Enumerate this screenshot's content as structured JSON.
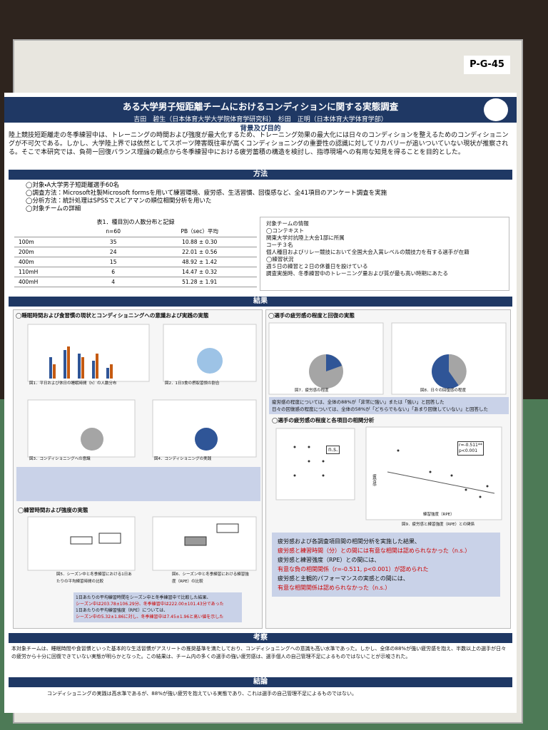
{
  "poster_id": "P-G-45",
  "header": {
    "title": "ある大学男子短距離チームにおけるコンディションに関する実態調査",
    "authors": "吉田　碧生（日本体育大学大学院体育学研究科）　杉田　正明（日本体育大学体育学部）"
  },
  "background": {
    "heading": "背景及び目的",
    "text": "陸上競技短距離走の冬季練習中は、トレーニングの時間および強度が最大化するため、トレーニング効果の最大化には日々のコンディションを整えるためのコンディショニングが不可欠である。しかし、大学陸上界では依然としてスポーツ障害既往率が高くコンディショニングの重要性の認識に対してリカバリーが追いついていない現状が推察される。そこで本研究では、負荷ー回復バランス理論の観点から冬季練習中における疲労蓄積の構造を検討し、指導現場への有用な知見を得ることを目的とした。"
  },
  "methods": {
    "heading": "方法",
    "items": [
      "◯対象・A大学男子短距離選手60名",
      "◯調査方法：Microsoft社製Microsoft formsを用いて練習環境、疲労感、生活習慣、回復感など、全41項目のアンケート調査を実施",
      "◯分析方法：統計処理はSPSSでスピアマンの順位相関分析を用いた",
      "◯対象チームの詳細"
    ],
    "table": {
      "caption": "表1．種目別の人数分布と記録",
      "columns": [
        "n=60",
        "PB（sec）平均"
      ],
      "rows": [
        [
          "100m",
          "35",
          "10.88 ± 0.30"
        ],
        [
          "200m",
          "24",
          "22.01 ± 0.56"
        ],
        [
          "400m",
          "15",
          "48.92 ± 1.42"
        ],
        [
          "110mH",
          "6",
          "14.47 ± 0.32"
        ],
        [
          "400mH",
          "4",
          "51.28 ± 1.91"
        ]
      ]
    },
    "team_info": {
      "title": "対象チームの情報",
      "context_heading": "◯コンテキスト",
      "context": [
        "関東大学対抗陸上大会1部に所属",
        "コーチ３名",
        "個人種目およびリレー競技において全国大会入賞レベルの競技力を有する選手が在籍"
      ],
      "practice_heading": "◯練習状況",
      "practice": [
        "週５日の練習と２日の休養日を設けている",
        "調査実施時、冬季練習中のトレーニング量および質が最も高い時期にあたる"
      ]
    }
  },
  "results": {
    "heading": "結果",
    "left_heading": "◯睡眠時間および食習慣の現状とコンディショニングへの意識および実践の実態",
    "figures_left": [
      "図1．平日および休日の睡眠時間（h）の人数分布",
      "図2．1日3食の摂取習慣の割合",
      "図3．コンディショニングへの意識",
      "図4．コンディショニングの実践"
    ],
    "training_heading": "◯練習時間および強度の実態",
    "figures_training": [
      "図5．シーズン中と冬季練習における1日あたりの平均練習時間の比較",
      "図6．シーズン中と冬季練習における練習強度（RPE）の比較"
    ],
    "training_summary": [
      "1日あたりの平均練習時間をシーズン中と冬季練習中で比較した結果、",
      "シーズン中は203.78±106.29分、冬季練習中は222.00±101.43分であった",
      "1日あたりの平均練習強度（RPE）については、",
      "シーズン中の5.32±1.86に対し、冬季練習中は7.45±1.96と高い値を示した"
    ],
    "right_heading": "◯選手の疲労感の程度と回復の実態",
    "figures_right": [
      "図7．疲労感の程度",
      "図8．日々の回復感の程度"
    ],
    "fatigue_notes": [
      "疲労感の程度については、全体の88%が「非常に強い」または「強い」と回答した",
      "日々の回復感の程度については、全体の58%が「どちらでもない」「あまり回復していない」と回答した"
    ],
    "correlation_heading": "◯選手の疲労感の程度と各項目の相関分析",
    "ns": "n.s.",
    "corr_r": "r=-0.511**",
    "corr_p": "p<0.001",
    "corr_x_label": "練習強度（RPE）",
    "corr_y_label": "疲労感",
    "figure_corr": "図9．疲労感と練習強度（RPE）との関係",
    "findings": [
      "疲労感および各調査項目間の相関分析を実施した結果、",
      "疲労感と練習時間（分）との間には有意な相関は認められなかった（n.s.）",
      "疲労感と練習強度（RPE）との間には、",
      "有意な負の相関関係（r=-0.511, p<0.001）が認められた",
      "疲労感と主観的パフォーマンスの実感との間には、",
      "有意な相関関係は認められなかった（n.s.）"
    ]
  },
  "discussion": {
    "heading": "考察",
    "text": "本対象チームは、睡眠時間や食習慣といった基本的な生活習慣がアスリートの推奨基準を満たしており、コンディショニングへの意識も高い水準であった。しかし、全体の88%が強い疲労感を抱え、半数以上の選手が日々の疲労から十分に回復できていない実態が明らかとなった。この結果は、チーム内の多くの選手の強い疲労感は、選手個人の自己管理不足によるものではないことが示唆された。"
  },
  "conclusion": {
    "heading": "結論",
    "text": "コンディショニングの実践は高水準であるが、88%が強い疲労を抱えている実態であり、これは選手の自己管理不足によるものではない。"
  }
}
